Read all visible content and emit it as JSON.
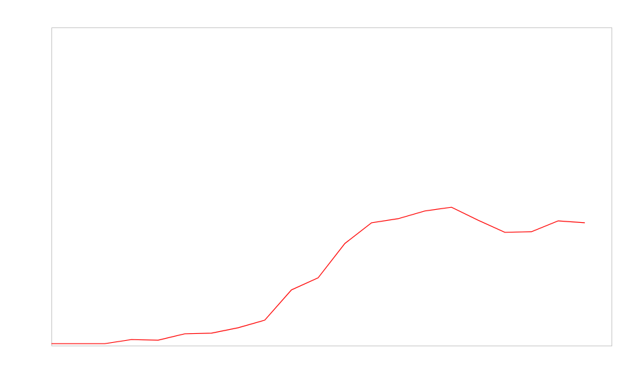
{
  "chart_data": {
    "type": "line",
    "categories": [
      null,
      null,
      null,
      null,
      null,
      null,
      null,
      null,
      null,
      null,
      null,
      null,
      null,
      null,
      null,
      null,
      null,
      null,
      null,
      null,
      null
    ],
    "series": [
      {
        "color": "#ff0000",
        "values": [
          0.6,
          0.6,
          0.6,
          1.9,
          1.7,
          3.7,
          3.9,
          5.6,
          8.0,
          17.5,
          21.3,
          32.1,
          38.6,
          39.9,
          42.3,
          43.5,
          39.4,
          35.6,
          35.8,
          39.2,
          38.6
        ]
      }
    ],
    "ylim": [
      0,
      100
    ]
  }
}
